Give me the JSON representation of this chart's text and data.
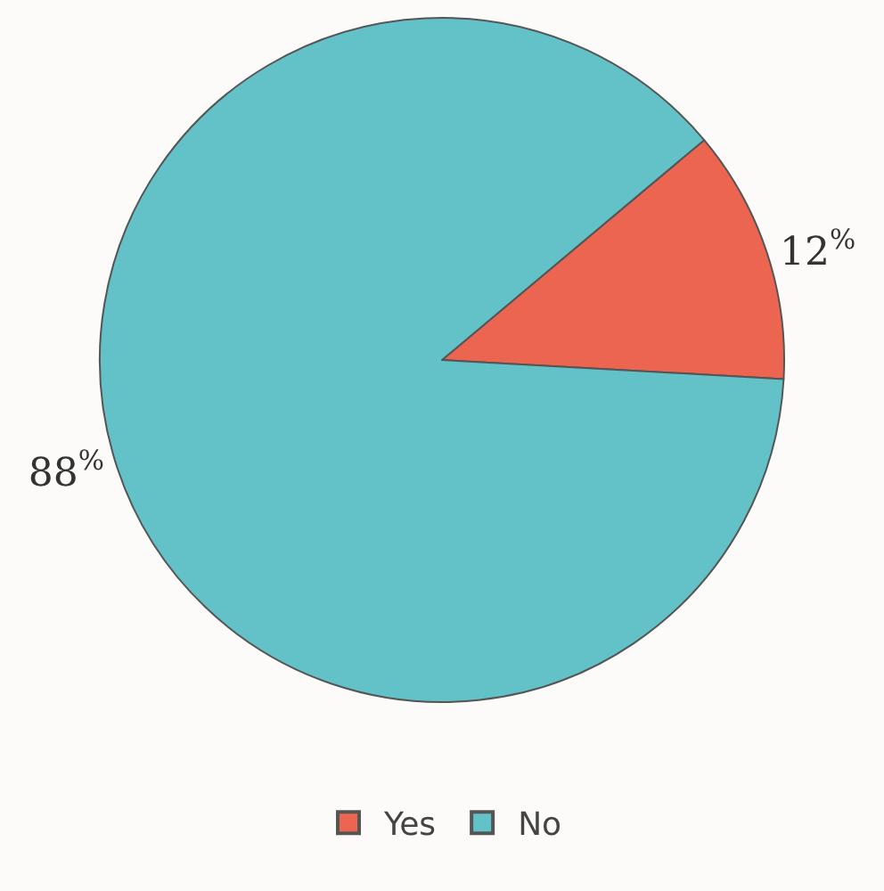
{
  "chart_data": {
    "type": "pie",
    "categories": [
      "Yes",
      "No"
    ],
    "values": [
      12,
      88
    ],
    "colors": [
      "#ec6550",
      "#62c2c8"
    ],
    "value_labels": [
      "12$^{%}$",
      "88$^{%}$"
    ],
    "legend": "bottom"
  }
}
